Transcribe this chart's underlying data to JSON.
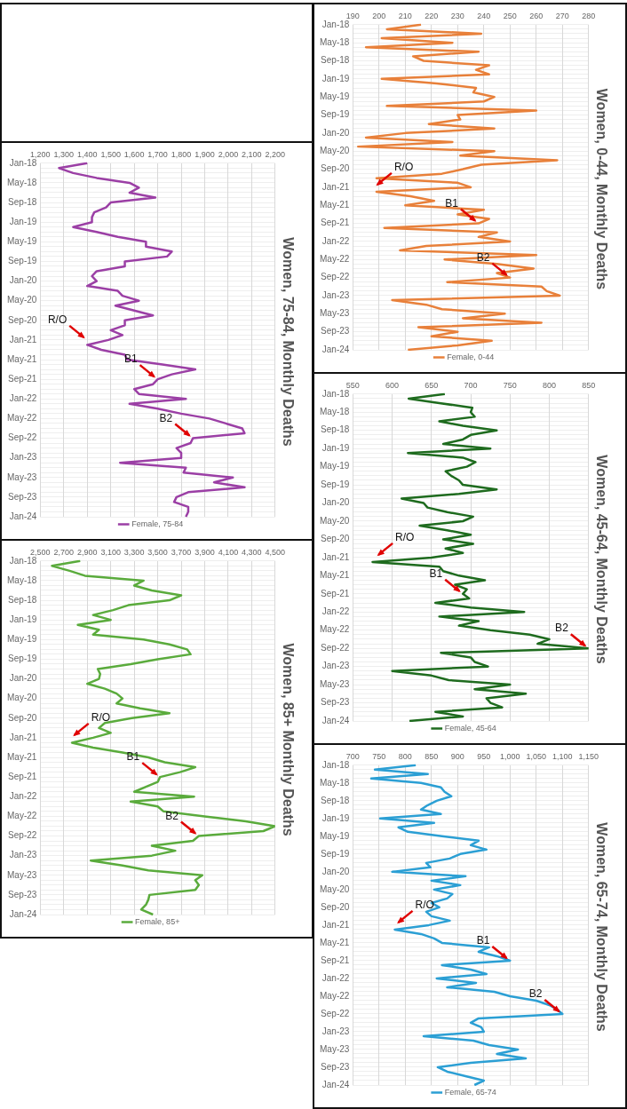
{
  "chart_data": [
    {
      "type": "line",
      "title": "Women, 0-44, Monthly Deaths",
      "categories": [
        "Jan-18",
        null,
        null,
        null,
        "May-18",
        null,
        null,
        null,
        "Sep-18",
        null,
        null,
        null,
        "Jan-19",
        null,
        null,
        null,
        "May-19",
        null,
        null,
        null,
        "Sep-19",
        null,
        null,
        null,
        "Jan-20",
        null,
        null,
        null,
        "May-20",
        null,
        null,
        null,
        "Sep-20",
        null,
        null,
        null,
        "Jan-21",
        null,
        null,
        null,
        "May-21",
        null,
        null,
        null,
        "Sep-21",
        null,
        null,
        null,
        "Jan-22",
        null,
        null,
        null,
        "May-22",
        null,
        null,
        null,
        "Sep-22",
        null,
        null,
        null,
        "Jan-23",
        null,
        null,
        null,
        "May-23",
        null,
        null,
        null,
        "Sep-23",
        null,
        null,
        null,
        "Jan-24"
      ],
      "series": [
        {
          "name": "Female, 0-44",
          "color": "#e8803a",
          "values": [
            216,
            203,
            239,
            201,
            228,
            195,
            238,
            213,
            217,
            242,
            237,
            242,
            201,
            222,
            237,
            236,
            244,
            240,
            203,
            260,
            230,
            231,
            219,
            244,
            210,
            195,
            228,
            192,
            244,
            231,
            268,
            239,
            232,
            224,
            199,
            230,
            235,
            199,
            212,
            221,
            210,
            240,
            230,
            242,
            238,
            202,
            245,
            238,
            250,
            218,
            208,
            260,
            225,
            245,
            259,
            245,
            250,
            226,
            262,
            264,
            269,
            205,
            218,
            224,
            248,
            232,
            262,
            215,
            230,
            220,
            243,
            230,
            211
          ]
        }
      ],
      "orientation": "horizontal",
      "xlim": [
        190,
        280
      ],
      "xticks": [
        190,
        200,
        210,
        220,
        230,
        240,
        250,
        260,
        270,
        280
      ],
      "grid": true,
      "legend": "bottom",
      "annotations": [
        {
          "text": "R/O",
          "y": "Jan-21",
          "x": 198
        },
        {
          "text": "B1",
          "y": "Sep-21",
          "x": 238
        },
        {
          "text": "B2",
          "y": "Sep-22",
          "x": 250
        }
      ]
    },
    {
      "type": "line",
      "title": "Women, 45-64, Monthly Deaths",
      "categories": [
        "Jan-18",
        null,
        null,
        null,
        "May-18",
        null,
        null,
        null,
        "Sep-18",
        null,
        null,
        null,
        "Jan-19",
        null,
        null,
        null,
        "May-19",
        null,
        null,
        null,
        "Sep-19",
        null,
        null,
        null,
        "Jan-20",
        null,
        null,
        null,
        "May-20",
        null,
        null,
        null,
        "Sep-20",
        null,
        null,
        null,
        "Jan-21",
        null,
        null,
        null,
        "May-21",
        null,
        null,
        null,
        "Sep-21",
        null,
        null,
        null,
        "Jan-22",
        null,
        null,
        null,
        "May-22",
        null,
        null,
        null,
        "Sep-22",
        null,
        null,
        null,
        "Jan-23",
        null,
        null,
        null,
        "May-23",
        null,
        null,
        null,
        "Sep-23",
        null,
        null,
        null,
        "Jan-24"
      ],
      "series": [
        {
          "name": "Female, 45-64",
          "color": "#1e6b1e",
          "values": [
            667,
            621,
            660,
            702,
            700,
            705,
            660,
            690,
            733,
            700,
            690,
            665,
            725,
            620,
            690,
            706,
            695,
            668,
            675,
            685,
            690,
            733,
            685,
            612,
            640,
            645,
            670,
            703,
            690,
            635,
            670,
            700,
            665,
            703,
            668,
            690,
            650,
            575,
            660,
            665,
            685,
            718,
            680,
            695,
            690,
            698,
            655,
            700,
            768,
            660,
            710,
            685,
            725,
            775,
            800,
            785,
            850,
            662,
            700,
            705,
            722,
            600,
            650,
            672,
            750,
            705,
            770,
            720,
            725,
            740,
            655,
            690,
            622
          ]
        }
      ],
      "orientation": "horizontal",
      "xlim": [
        550,
        850
      ],
      "xticks": [
        550,
        600,
        650,
        700,
        750,
        800,
        850
      ],
      "grid": true,
      "legend": "bottom",
      "annotations": [
        {
          "text": "R/O",
          "y": "Jan-21",
          "x": 578
        },
        {
          "text": "B1",
          "y": "Sep-21",
          "x": 690
        },
        {
          "text": "B2",
          "y": "Sep-22",
          "x": 850
        }
      ]
    },
    {
      "type": "line",
      "title": "Women, 65-74, Monthly Deaths",
      "categories": [
        "Jan-18",
        null,
        null,
        null,
        "May-18",
        null,
        null,
        null,
        "Sep-18",
        null,
        null,
        null,
        "Jan-19",
        null,
        null,
        null,
        "May-19",
        null,
        null,
        null,
        "Sep-19",
        null,
        null,
        null,
        "Jan-20",
        null,
        null,
        null,
        "May-20",
        null,
        null,
        null,
        "Sep-20",
        null,
        null,
        null,
        "Jan-21",
        null,
        null,
        null,
        "May-21",
        null,
        null,
        null,
        "Sep-21",
        null,
        null,
        null,
        "Jan-22",
        null,
        null,
        null,
        "May-22",
        null,
        null,
        null,
        "Sep-22",
        null,
        null,
        null,
        "Jan-23",
        null,
        null,
        null,
        "May-23",
        null,
        null,
        null,
        "Sep-23",
        null,
        null,
        null,
        "Jan-24"
      ],
      "series": [
        {
          "name": "Female, 65-74",
          "color": "#2b9fd4",
          "values": [
            820,
            742,
            843,
            735,
            830,
            868,
            875,
            888,
            860,
            843,
            830,
            868,
            752,
            855,
            787,
            805,
            870,
            940,
            925,
            955,
            905,
            885,
            840,
            848,
            775,
            915,
            850,
            905,
            855,
            890,
            880,
            850,
            865,
            840,
            850,
            885,
            845,
            780,
            830,
            855,
            870,
            960,
            940,
            975,
            1000,
            870,
            925,
            955,
            860,
            935,
            880,
            970,
            1000,
            1050,
            1075,
            1090,
            1100,
            940,
            925,
            945,
            950,
            835,
            930,
            960,
            1015,
            975,
            1030,
            925,
            862,
            880,
            915,
            950,
            932
          ]
        }
      ],
      "orientation": "horizontal",
      "xlim": [
        700,
        1150
      ],
      "xticks": [
        700,
        750,
        800,
        850,
        900,
        950,
        {
          "value": 1000,
          "label": "1,000"
        },
        {
          "value": 1050,
          "label": "1,050"
        },
        {
          "value": 1100,
          "label": "1,100"
        },
        {
          "value": 1150,
          "label": "1,150"
        }
      ],
      "grid": true,
      "legend": "bottom",
      "annotations": [
        {
          "text": "R/O",
          "y": "Jan-21",
          "x": 780
        },
        {
          "text": "B1",
          "y": "Sep-21",
          "x": 1000
        },
        {
          "text": "B2",
          "y": "Sep-22",
          "x": 1100
        }
      ]
    },
    {
      "type": "line",
      "title": "Women, 75-84, Monthly Deaths",
      "categories": [
        "Jan-18",
        null,
        null,
        null,
        "May-18",
        null,
        null,
        null,
        "Sep-18",
        null,
        null,
        null,
        "Jan-19",
        null,
        null,
        null,
        "May-19",
        null,
        null,
        null,
        "Sep-19",
        null,
        null,
        null,
        "Jan-20",
        null,
        null,
        null,
        "May-20",
        null,
        null,
        null,
        "Sep-20",
        null,
        null,
        null,
        "Jan-21",
        null,
        null,
        null,
        "May-21",
        null,
        null,
        null,
        "Sep-21",
        null,
        null,
        null,
        "Jan-22",
        null,
        null,
        null,
        "May-22",
        null,
        null,
        null,
        "Sep-22",
        null,
        null,
        null,
        "Jan-23",
        null,
        null,
        null,
        "May-23",
        null,
        null,
        null,
        "Sep-23",
        null,
        null,
        null,
        "Jan-24"
      ],
      "series": [
        {
          "name": "Female, 75-84",
          "color": "#9b3fa5",
          "values": [
            1400,
            1280,
            1340,
            1440,
            1580,
            1620,
            1580,
            1690,
            1500,
            1480,
            1430,
            1420,
            1420,
            1340,
            1440,
            1530,
            1650,
            1650,
            1760,
            1740,
            1560,
            1560,
            1440,
            1420,
            1440,
            1400,
            1530,
            1550,
            1620,
            1520,
            1600,
            1680,
            1560,
            1560,
            1500,
            1550,
            1490,
            1400,
            1460,
            1560,
            1570,
            1720,
            1860,
            1760,
            1700,
            1680,
            1600,
            1620,
            1820,
            1580,
            1700,
            1800,
            1920,
            1990,
            2060,
            2070,
            1850,
            1840,
            1780,
            1800,
            1800,
            1540,
            1820,
            1810,
            2020,
            1940,
            2070,
            1830,
            1780,
            1770,
            1830,
            1830,
            1820
          ]
        }
      ],
      "orientation": "horizontal",
      "xlim": [
        1200,
        2200
      ],
      "xticks": [
        {
          "value": 1200,
          "label": "1,200"
        },
        {
          "value": 1300,
          "label": "1,300"
        },
        {
          "value": 1400,
          "label": "1,400"
        },
        {
          "value": 1500,
          "label": "1,500"
        },
        {
          "value": 1600,
          "label": "1,600"
        },
        {
          "value": 1700,
          "label": "1,700"
        },
        {
          "value": 1800,
          "label": "1,800"
        },
        {
          "value": 1900,
          "label": "1,900"
        },
        {
          "value": 2000,
          "label": "2,000"
        },
        {
          "value": 2100,
          "label": "2,100"
        },
        {
          "value": 2200,
          "label": "2,200"
        }
      ],
      "grid": true,
      "legend": "bottom",
      "annotations": [
        {
          "text": "R/O",
          "y": "Jan-21",
          "x": 1400
        },
        {
          "text": "B1",
          "y": "Sep-21",
          "x": 1700
        },
        {
          "text": "B2",
          "y": "Sep-22",
          "x": 1850
        }
      ]
    },
    {
      "type": "line",
      "title": "Women, 85+ Monthly Deaths",
      "categories": [
        "Jan-18",
        null,
        null,
        null,
        "May-18",
        null,
        null,
        null,
        "Sep-18",
        null,
        null,
        null,
        "Jan-19",
        null,
        null,
        null,
        "May-19",
        null,
        null,
        null,
        "Sep-19",
        null,
        null,
        null,
        "Jan-20",
        null,
        null,
        null,
        "May-20",
        null,
        null,
        null,
        "Sep-20",
        null,
        null,
        null,
        "Jan-21",
        null,
        null,
        null,
        "May-21",
        null,
        null,
        null,
        "Sep-21",
        null,
        null,
        null,
        "Jan-22",
        null,
        null,
        null,
        "May-22",
        null,
        null,
        null,
        "Sep-22",
        null,
        null,
        null,
        "Jan-23",
        null,
        null,
        null,
        "May-23",
        null,
        null,
        null,
        "Sep-23",
        null,
        null,
        null,
        "Jan-24"
      ],
      "series": [
        {
          "name": "Female, 85+",
          "color": "#5aab3c",
          "values": [
            2840,
            2600,
            2750,
            2880,
            3380,
            3300,
            3450,
            3700,
            3600,
            3250,
            3120,
            2950,
            3100,
            2820,
            3000,
            2950,
            3380,
            3600,
            3750,
            3780,
            3500,
            3270,
            2990,
            3010,
            3000,
            2900,
            3050,
            3150,
            3200,
            3150,
            3350,
            3600,
            3280,
            3050,
            3000,
            3100,
            2950,
            2770,
            2950,
            3200,
            3420,
            3560,
            3820,
            3690,
            3520,
            3500,
            3400,
            3300,
            3810,
            3270,
            3500,
            3550,
            3900,
            4250,
            4500,
            4400,
            3850,
            3800,
            3450,
            3650,
            3450,
            2930,
            3200,
            3420,
            3880,
            3820,
            3850,
            3820,
            3430,
            3420,
            3400,
            3360,
            3460
          ]
        }
      ],
      "orientation": "horizontal",
      "xlim": [
        2500,
        4500
      ],
      "xticks": [
        {
          "value": 2500,
          "label": "2,500"
        },
        {
          "value": 2700,
          "label": "2,700"
        },
        {
          "value": 2900,
          "label": "2,900"
        },
        {
          "value": 3100,
          "label": "3,100"
        },
        {
          "value": 3300,
          "label": "3,300"
        },
        {
          "value": 3500,
          "label": "3,500"
        },
        {
          "value": 3700,
          "label": "3,700"
        },
        {
          "value": 3900,
          "label": "3,900"
        },
        {
          "value": 4100,
          "label": "4,100"
        },
        {
          "value": 4300,
          "label": "4,300"
        },
        {
          "value": 4500,
          "label": "4,500"
        }
      ],
      "grid": true,
      "legend": "bottom",
      "annotations": [
        {
          "text": "R/O",
          "y": "Jan-21",
          "x": 2760
        },
        {
          "text": "B1",
          "y": "Sep-21",
          "x": 3520
        },
        {
          "text": "B2",
          "y": "Sep-22",
          "x": 3850
        }
      ]
    }
  ]
}
